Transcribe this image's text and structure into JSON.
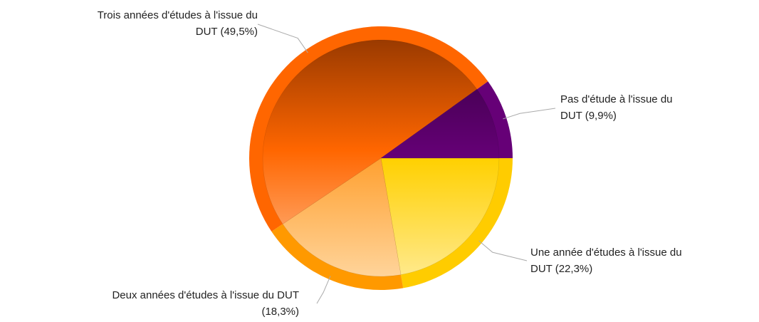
{
  "chart_data": {
    "type": "pie",
    "labels": [
      [
        "Une année d'études à l'issue du",
        "DUT (22,3%)"
      ],
      [
        "Deux années d'études à l'issue du DUT",
        "(18,3%)"
      ],
      [
        "Trois années d'études à l'issue du",
        "DUT (49,5%)"
      ],
      [
        "Pas d'étude à l'issue du",
        "DUT (9,9%)"
      ]
    ],
    "values": [
      22.3,
      18.3,
      49.5,
      9.9
    ],
    "colors": [
      "#ffcc00",
      "#ff9900",
      "#ff6600",
      "#660077"
    ]
  }
}
